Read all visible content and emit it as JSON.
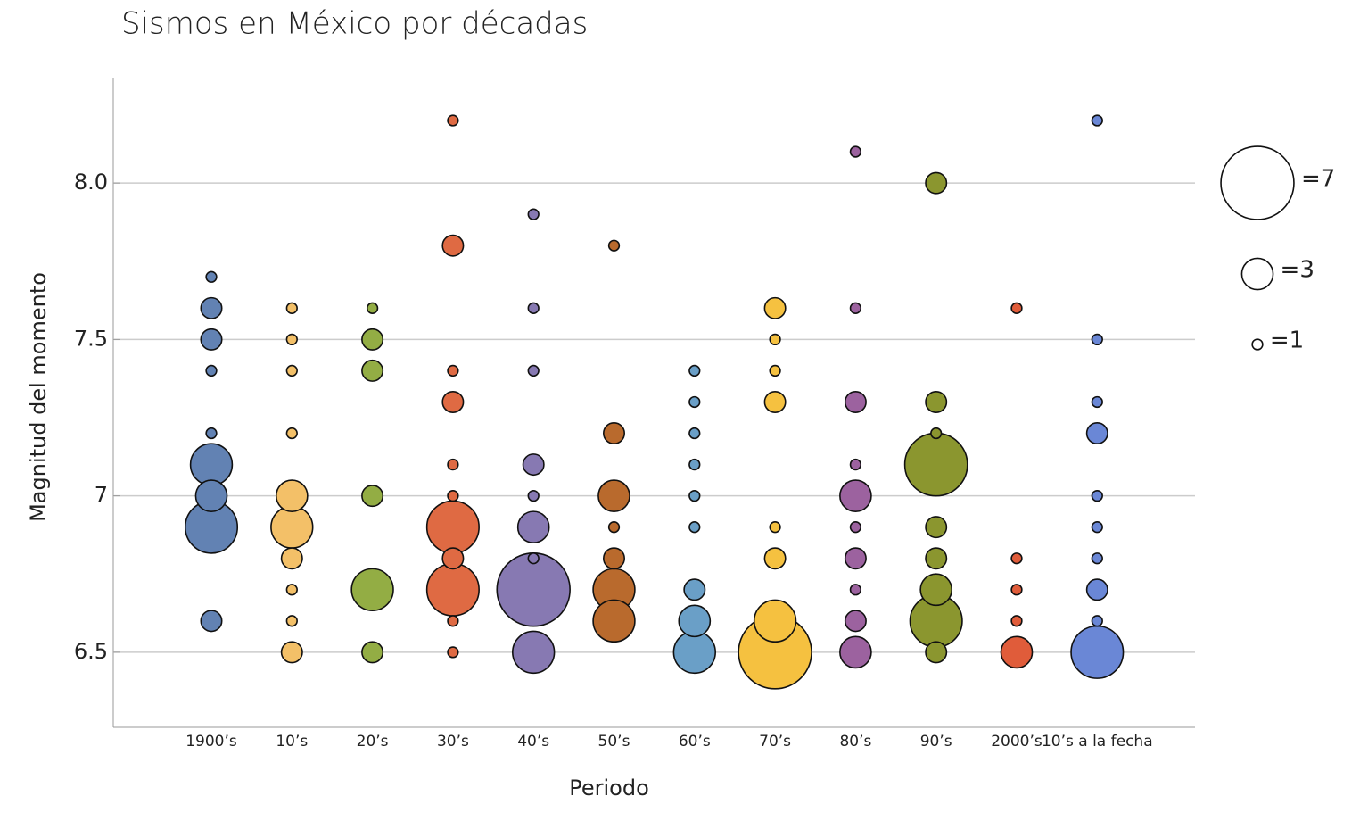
{
  "chart_data": {
    "type": "bubble",
    "title": "Sismos en México por décadas",
    "x_label": "Periodo",
    "y_label": "Magnitud del momento",
    "categories": [
      "1900’s",
      "10’s",
      "20’s",
      "30’s",
      "40’s",
      "50’s",
      "60’s",
      "70’s",
      "80’s",
      "90’s",
      "2000’s",
      "10’s a la fecha"
    ],
    "ylim": [
      6.26,
      8.337
    ],
    "yticks": [
      6.5,
      7,
      7.5,
      {
        "value": 8,
        "label": "8.0"
      }
    ],
    "grid": true,
    "series": [
      {
        "color": "#6282b3",
        "values": [
          7.7,
          7.6,
          7.5,
          7.4,
          7.2,
          7.1,
          7.0,
          6.9,
          6.6
        ],
        "sizes": [
          1,
          2,
          2,
          1,
          1,
          4,
          3,
          5,
          2
        ]
      },
      {
        "color": "#f3c068",
        "values": [
          7.6,
          7.5,
          7.4,
          7.2,
          7.0,
          6.9,
          6.8,
          6.7,
          6.6,
          6.5
        ],
        "sizes": [
          1,
          1,
          1,
          1,
          3,
          4,
          2,
          1,
          1,
          2
        ]
      },
      {
        "color": "#93ad44",
        "values": [
          7.6,
          7.5,
          7.4,
          7.0,
          6.7,
          6.5
        ],
        "sizes": [
          1,
          2,
          2,
          2,
          4,
          2
        ]
      },
      {
        "color": "#df6a43",
        "values": [
          8.2,
          7.8,
          7.4,
          7.3,
          7.1,
          7.0,
          6.9,
          6.8,
          6.7,
          6.6,
          6.5
        ],
        "sizes": [
          1,
          2,
          1,
          2,
          1,
          1,
          5,
          2,
          5,
          1,
          1
        ]
      },
      {
        "color": "#8779b2",
        "values": [
          7.9,
          7.6,
          7.4,
          7.1,
          7.0,
          6.9,
          6.8,
          6.7,
          6.5
        ],
        "sizes": [
          1,
          1,
          1,
          2,
          1,
          3,
          1,
          7,
          4
        ]
      },
      {
        "color": "#b96a2d",
        "values": [
          7.8,
          7.2,
          7.0,
          6.9,
          6.8,
          6.7,
          6.6
        ],
        "sizes": [
          1,
          2,
          3,
          1,
          2,
          4,
          4
        ]
      },
      {
        "color": "#6a9fc7",
        "values": [
          7.4,
          7.3,
          7.2,
          7.1,
          7.0,
          6.9,
          6.7,
          6.6,
          6.5
        ],
        "sizes": [
          1,
          1,
          1,
          1,
          1,
          1,
          2,
          3,
          4
        ]
      },
      {
        "color": "#f5c140",
        "values": [
          7.6,
          7.5,
          7.4,
          7.3,
          6.9,
          6.8,
          6.6,
          6.5
        ],
        "sizes": [
          2,
          1,
          1,
          2,
          1,
          2,
          4,
          7
        ]
      },
      {
        "color": "#9c629f",
        "values": [
          8.1,
          7.6,
          7.3,
          7.1,
          7.0,
          6.9,
          6.8,
          6.7,
          6.6,
          6.5
        ],
        "sizes": [
          1,
          1,
          2,
          1,
          3,
          1,
          2,
          1,
          2,
          3
        ]
      },
      {
        "color": "#8b962f",
        "values": [
          8.0,
          7.3,
          7.2,
          7.1,
          6.9,
          6.8,
          6.7,
          6.6,
          6.5
        ],
        "sizes": [
          2,
          2,
          1,
          6,
          2,
          2,
          3,
          5,
          2
        ]
      },
      {
        "color": "#e05c3a",
        "values": [
          7.6,
          6.8,
          6.7,
          6.6,
          6.5
        ],
        "sizes": [
          1,
          1,
          1,
          1,
          3
        ]
      },
      {
        "color": "#6a87d6",
        "values": [
          8.2,
          7.5,
          7.3,
          7.2,
          7.0,
          6.9,
          6.8,
          6.7,
          6.6,
          6.5
        ],
        "sizes": [
          1,
          1,
          1,
          2,
          1,
          1,
          1,
          2,
          1,
          5
        ]
      }
    ],
    "size_legend": [
      {
        "value": 7,
        "label": "=7"
      },
      {
        "value": 3,
        "label": "=3"
      },
      {
        "value": 1,
        "label": "=1"
      }
    ]
  }
}
